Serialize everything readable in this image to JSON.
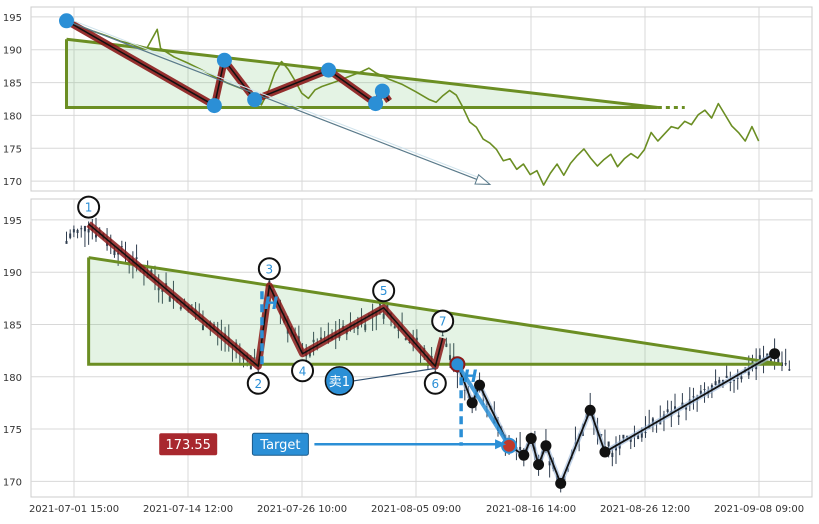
{
  "chart_data": [
    {
      "type": "line",
      "panel": "overview",
      "ylim": [
        168.5,
        196.5
      ],
      "yticks": [
        170,
        175,
        180,
        185,
        190,
        195
      ],
      "grid": true,
      "line_color": "#6b8e23",
      "pattern_color": "#8b1a1a",
      "pivot_color": "#2b8fd6",
      "triangle_color": "#6b8e23",
      "price": [
        [
          0,
          194.6
        ],
        [
          2,
          193.6
        ],
        [
          4,
          192.8
        ],
        [
          6,
          192.1
        ],
        [
          8,
          191.3
        ],
        [
          10,
          190.8
        ],
        [
          12,
          190.3
        ],
        [
          13.5,
          193.1
        ],
        [
          14,
          190.2
        ],
        [
          16,
          188.9
        ],
        [
          18,
          188.0
        ],
        [
          20,
          187.0
        ],
        [
          22,
          185.9
        ],
        [
          24,
          184.9
        ],
        [
          26,
          184.1
        ],
        [
          28,
          183.3
        ],
        [
          29,
          181.6
        ],
        [
          30,
          183.6
        ],
        [
          31,
          186.5
        ],
        [
          32,
          188.2
        ],
        [
          33,
          187.0
        ],
        [
          34,
          185.3
        ],
        [
          35,
          183.4
        ],
        [
          36,
          182.6
        ],
        [
          37,
          183.9
        ],
        [
          38,
          184.4
        ],
        [
          40,
          185.1
        ],
        [
          42,
          185.9
        ],
        [
          44,
          186.7
        ],
        [
          45,
          187.2
        ],
        [
          46,
          186.5
        ],
        [
          48,
          185.5
        ],
        [
          50,
          184.7
        ],
        [
          52,
          183.6
        ],
        [
          54,
          182.4
        ],
        [
          55,
          182.0
        ],
        [
          56,
          183.0
        ],
        [
          57,
          183.8
        ],
        [
          58,
          183.1
        ],
        [
          59,
          181.2
        ],
        [
          60,
          179.0
        ],
        [
          61,
          178.2
        ],
        [
          62,
          176.4
        ],
        [
          63,
          175.8
        ],
        [
          64,
          174.8
        ],
        [
          65,
          173.1
        ],
        [
          66,
          173.4
        ],
        [
          67,
          171.8
        ],
        [
          68,
          172.6
        ],
        [
          69,
          171.0
        ],
        [
          70,
          171.6
        ],
        [
          71,
          169.4
        ],
        [
          72,
          171.2
        ],
        [
          73,
          172.6
        ],
        [
          74,
          170.9
        ],
        [
          75,
          172.7
        ],
        [
          76,
          173.9
        ],
        [
          77,
          174.9
        ],
        [
          78,
          173.5
        ],
        [
          79,
          172.3
        ],
        [
          80,
          173.3
        ],
        [
          81,
          174.1
        ],
        [
          82,
          172.2
        ],
        [
          83,
          173.4
        ],
        [
          84,
          174.2
        ],
        [
          85,
          173.5
        ],
        [
          86,
          174.8
        ],
        [
          87,
          177.4
        ],
        [
          88,
          176.1
        ],
        [
          89,
          177.2
        ],
        [
          90,
          178.3
        ],
        [
          91,
          178.0
        ],
        [
          92,
          179.1
        ],
        [
          93,
          178.6
        ],
        [
          94,
          180.1
        ],
        [
          95,
          180.8
        ],
        [
          96,
          179.6
        ],
        [
          97,
          181.8
        ],
        [
          98,
          180.1
        ],
        [
          99,
          178.4
        ],
        [
          100,
          177.4
        ],
        [
          101,
          176.1
        ],
        [
          102,
          178.3
        ],
        [
          103,
          176.1
        ]
      ],
      "triangle": [
        [
          0,
          191.6
        ],
        [
          0,
          181.2
        ],
        [
          88,
          181.2
        ],
        [
          92,
          181.2
        ]
      ],
      "pattern": [
        [
          0,
          194.4
        ],
        [
          22,
          181.5
        ],
        [
          23.5,
          188.4
        ],
        [
          28,
          182.4
        ],
        [
          39,
          186.9
        ],
        [
          46,
          181.8
        ],
        [
          47,
          183.7
        ],
        [
          48,
          182.2
        ]
      ],
      "pivots": [
        [
          0,
          194.4
        ],
        [
          22,
          181.5
        ],
        [
          23.5,
          188.4
        ],
        [
          28,
          182.4
        ],
        [
          39,
          186.9
        ],
        [
          46,
          181.8
        ],
        [
          47,
          183.7
        ]
      ],
      "arrow": [
        [
          0,
          194.4
        ],
        [
          63,
          169.5
        ]
      ]
    },
    {
      "type": "candlestick",
      "panel": "main",
      "x_tick_labels": [
        "2021-07-01 15:00",
        "2021-07-14 12:00",
        "2021-07-26 10:00",
        "2021-08-05 09:00",
        "2021-08-16 14:00",
        "2021-08-26 12:00",
        "2021-09-08 09:00"
      ],
      "ylim": [
        168.5,
        197.0
      ],
      "yticks": [
        170,
        175,
        180,
        185,
        190,
        195
      ],
      "grid": true,
      "candle_color": "#2f3d4f",
      "pattern": [
        [
          3,
          194.6
        ],
        [
          26,
          181.0
        ],
        [
          27.5,
          188.7
        ],
        [
          32,
          182.2
        ],
        [
          43,
          186.6
        ],
        [
          50,
          181.0
        ],
        [
          51,
          183.7
        ]
      ],
      "pattern_labels": [
        "1",
        "2",
        "3",
        "4",
        "5",
        "6",
        "7"
      ],
      "pattern_label_positions": [
        "above",
        "below",
        "above",
        "below",
        "above",
        "below",
        "above"
      ],
      "triangle": [
        [
          3,
          191.4
        ],
        [
          3,
          181.2
        ],
        [
          97,
          181.2
        ]
      ],
      "triangle_upper": [
        [
          3,
          191.4
        ],
        [
          97,
          181.2
        ]
      ],
      "projection_line": [
        [
          53,
          181.2
        ],
        [
          60,
          173.4
        ]
      ],
      "after_breakout": [
        [
          53,
          181.2
        ],
        [
          55,
          177.5
        ],
        [
          56,
          179.2
        ],
        [
          60,
          173.4
        ],
        [
          62,
          172.5
        ],
        [
          63,
          174.1
        ],
        [
          64,
          171.6
        ],
        [
          65,
          173.4
        ],
        [
          67,
          169.8
        ],
        [
          71,
          176.8
        ],
        [
          73,
          172.8
        ],
        [
          96,
          182.2
        ]
      ],
      "breakout_point": [
        53,
        181.2
      ],
      "target_point": [
        60,
        173.4
      ],
      "height_bars": [
        {
          "x": 26.5,
          "y1": 181.2,
          "y2": 188.6,
          "label": "H"
        },
        {
          "x": 53.5,
          "y1": 181.2,
          "y2": 173.4,
          "label": "H"
        }
      ],
      "sell_signal": {
        "label": "卖1",
        "x": 37,
        "y": 179.6,
        "line_to": [
          50,
          180.8
        ]
      },
      "price_badge": {
        "text": "173.55",
        "x": 16.5,
        "y": 173.55,
        "color": "#a8282e"
      },
      "target_badge": {
        "text": "Target",
        "x": 29,
        "y": 173.55,
        "color": "#2b8fd6"
      }
    }
  ]
}
